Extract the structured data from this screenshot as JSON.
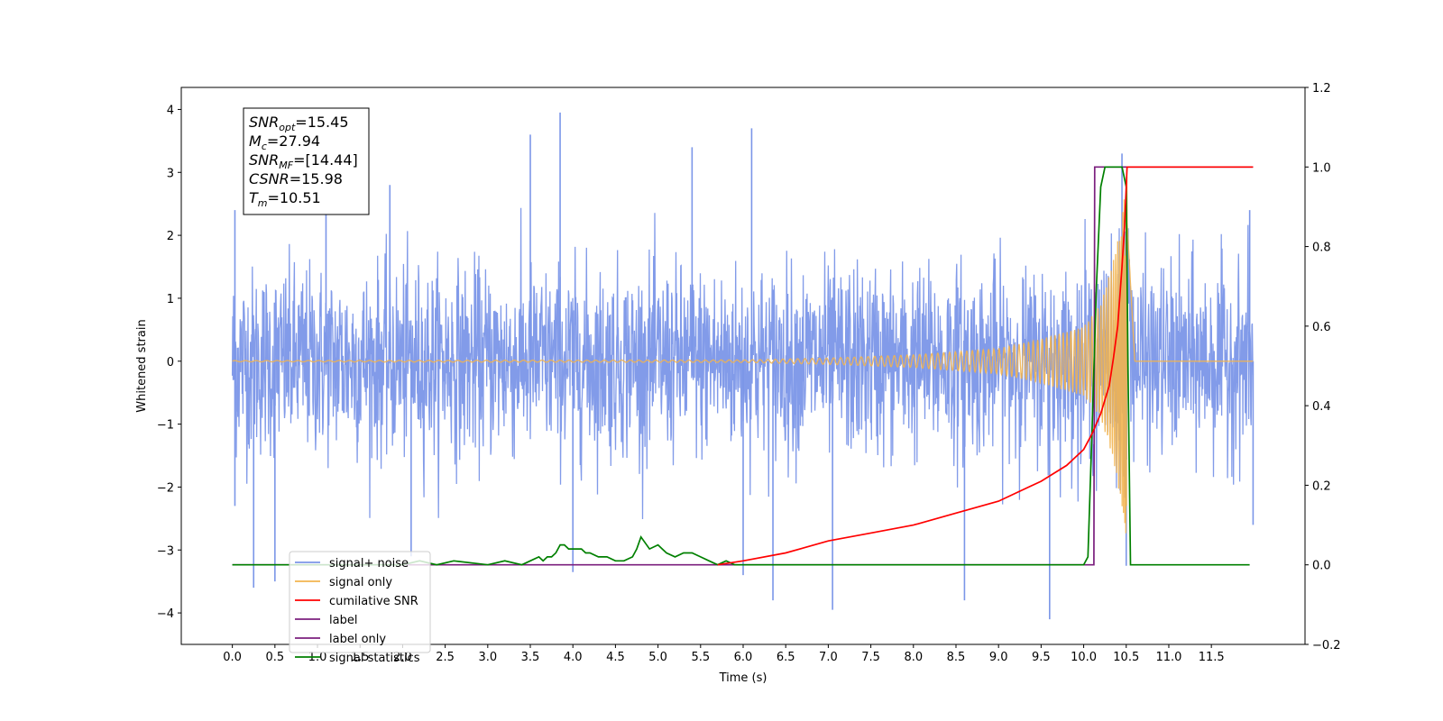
{
  "chart_data": {
    "type": "line",
    "xlabel": "Time (s)",
    "ylabel": "Whitened strain",
    "x_ticks": [
      0.0,
      0.5,
      1.0,
      1.5,
      2.0,
      2.5,
      3.0,
      3.5,
      4.0,
      4.5,
      5.0,
      5.5,
      6.0,
      6.5,
      7.0,
      7.5,
      8.0,
      8.5,
      9.0,
      9.5,
      10.0,
      10.5,
      11.0,
      11.5
    ],
    "x_tick_labels": [
      "0.0",
      "0.5",
      "1.0",
      "1.5",
      "2.0",
      "2.5",
      "3.0",
      "3.5",
      "4.0",
      "4.5",
      "5.0",
      "5.5",
      "6.0",
      "6.5",
      "7.0",
      "7.5",
      "8.0",
      "8.5",
      "9.0",
      "9.5",
      "10.0",
      "10.5",
      "11.0",
      "11.5"
    ],
    "xlim": [
      -0.6,
      12.6
    ],
    "y_left_ticks": [
      -4,
      -3,
      -2,
      -1,
      0,
      1,
      2,
      3,
      4
    ],
    "y_left_tick_labels": [
      "−4",
      "−3",
      "−2",
      "−1",
      "0",
      "1",
      "2",
      "3",
      "4"
    ],
    "ylim_left": [
      -4.5,
      4.35
    ],
    "y_right_ticks": [
      -0.2,
      0.0,
      0.2,
      0.4,
      0.6,
      0.8,
      1.0,
      1.2
    ],
    "y_right_tick_labels": [
      "−0.2",
      "0.0",
      "0.2",
      "0.4",
      "0.6",
      "0.8",
      "1.0",
      "1.2"
    ],
    "ylim_right": [
      -0.2,
      1.2
    ],
    "grid": false,
    "legend_position": "lower-left",
    "annotation": [
      {
        "main": "SNR",
        "sub": "opt",
        "value": "=15.45"
      },
      {
        "main": "M",
        "sub": "c",
        "value": "=27.94"
      },
      {
        "main": "SNR",
        "sub": "MF",
        "value": "=[14.44]"
      },
      {
        "main": "CSNR",
        "sub": "",
        "value": "=15.98"
      },
      {
        "main": "T",
        "sub": "m",
        "value": "=10.51"
      }
    ],
    "series": [
      {
        "name": "signal+ noise",
        "color": "#7b96e8",
        "axis": "left",
        "x_range": [
          0.0,
          11.99
        ],
        "amplitude_envelope": {
          "typical": 1.2,
          "peaks": [
            {
              "x": 0.03,
              "y": 2.4
            },
            {
              "x": 0.03,
              "y": -2.3
            },
            {
              "x": 0.25,
              "y": -3.6
            },
            {
              "x": 0.5,
              "y": -3.5
            },
            {
              "x": 1.1,
              "y": 3.0
            },
            {
              "x": 1.85,
              "y": 2.8
            },
            {
              "x": 2.1,
              "y": -3.1
            },
            {
              "x": 3.5,
              "y": 3.6
            },
            {
              "x": 3.85,
              "y": 3.95
            },
            {
              "x": 4.0,
              "y": -3.35
            },
            {
              "x": 5.4,
              "y": 3.4
            },
            {
              "x": 6.0,
              "y": -3.4
            },
            {
              "x": 6.1,
              "y": 3.7
            },
            {
              "x": 6.35,
              "y": -3.8
            },
            {
              "x": 7.05,
              "y": -3.95
            },
            {
              "x": 8.6,
              "y": -3.8
            },
            {
              "x": 9.6,
              "y": -4.1
            },
            {
              "x": 10.45,
              "y": 3.3
            },
            {
              "x": 10.5,
              "y": -3.25
            },
            {
              "x": 11.95,
              "y": 2.4
            },
            {
              "x": 11.99,
              "y": -2.6
            }
          ]
        }
      },
      {
        "name": "signal only",
        "color": "#f2b44f",
        "axis": "left",
        "chirp": {
          "x": [
            0.0,
            6.0,
            7.0,
            8.0,
            9.0,
            9.5,
            10.0,
            10.2,
            10.35,
            10.45,
            10.51,
            10.6,
            11.99
          ],
          "amplitude": [
            0.01,
            0.02,
            0.05,
            0.1,
            0.2,
            0.35,
            0.55,
            0.9,
            1.6,
            2.3,
            3.0,
            0.0,
            0.0
          ]
        }
      },
      {
        "name": "cumilative SNR",
        "color": "#ff0000",
        "axis": "right",
        "x": [
          5.7,
          6.0,
          6.5,
          7.0,
          7.5,
          8.0,
          8.5,
          9.0,
          9.5,
          9.8,
          10.0,
          10.1,
          10.2,
          10.3,
          10.35,
          10.4,
          10.45,
          10.48,
          10.51,
          10.55,
          11.99
        ],
        "y": [
          0.0,
          0.01,
          0.03,
          0.06,
          0.08,
          0.1,
          0.13,
          0.16,
          0.21,
          0.25,
          0.29,
          0.33,
          0.38,
          0.45,
          0.52,
          0.6,
          0.75,
          0.85,
          1.0,
          1.0,
          1.0
        ]
      },
      {
        "name": "label",
        "color": "#7b1f7e",
        "axis": "right",
        "x": [
          0.0,
          10.12,
          10.13,
          10.5,
          10.51,
          10.52,
          10.53,
          11.99
        ],
        "y": [
          0.0,
          0.0,
          1.0,
          1.0,
          1.0,
          1.0,
          1.0,
          1.0
        ]
      },
      {
        "name": "label only",
        "color": "#7b1f7e",
        "axis": "right",
        "x": [],
        "y": []
      },
      {
        "name": "signal statistics",
        "color": "#008000",
        "axis": "right",
        "x": [
          0.0,
          2.0,
          2.2,
          2.4,
          2.6,
          3.0,
          3.2,
          3.4,
          3.5,
          3.6,
          3.65,
          3.7,
          3.75,
          3.8,
          3.85,
          3.9,
          3.95,
          4.0,
          4.1,
          4.15,
          4.2,
          4.3,
          4.4,
          4.5,
          4.6,
          4.7,
          4.75,
          4.8,
          4.9,
          5.0,
          5.05,
          5.1,
          5.2,
          5.3,
          5.4,
          5.5,
          5.6,
          5.7,
          5.8,
          5.9,
          6.0,
          6.5,
          7.0,
          8.0,
          9.0,
          10.0,
          10.05,
          10.1,
          10.15,
          10.2,
          10.25,
          10.3,
          10.4,
          10.45,
          10.5,
          10.52,
          10.55,
          10.6,
          11.0,
          11.5,
          11.95
        ],
        "y": [
          0.0,
          0.0,
          0.01,
          0.0,
          0.01,
          0.0,
          0.01,
          0.0,
          0.01,
          0.02,
          0.01,
          0.02,
          0.02,
          0.03,
          0.05,
          0.05,
          0.04,
          0.04,
          0.04,
          0.03,
          0.03,
          0.02,
          0.02,
          0.01,
          0.01,
          0.02,
          0.04,
          0.07,
          0.04,
          0.05,
          0.04,
          0.03,
          0.02,
          0.03,
          0.03,
          0.02,
          0.01,
          0.0,
          0.01,
          0.0,
          0.0,
          0.0,
          0.0,
          0.0,
          0.0,
          0.0,
          0.02,
          0.35,
          0.7,
          0.95,
          1.0,
          1.0,
          1.0,
          1.0,
          0.95,
          0.5,
          0.0,
          0.0,
          0.0,
          0.0,
          0.0
        ]
      }
    ]
  }
}
